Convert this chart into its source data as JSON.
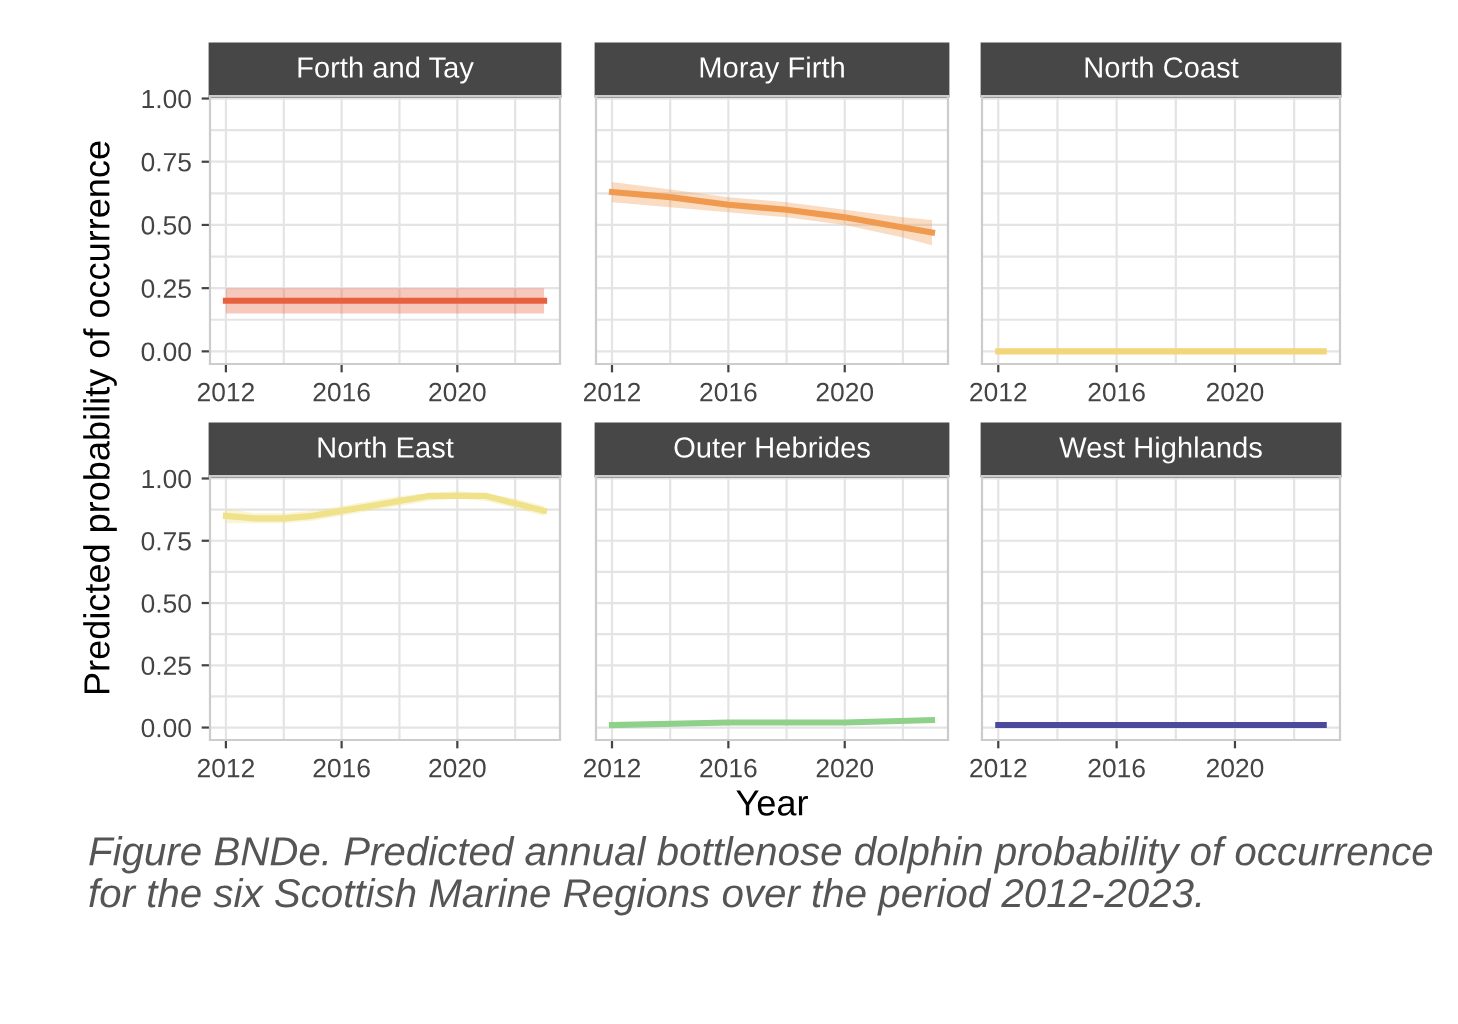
{
  "chart_data": [
    {
      "type": "line",
      "title": "Forth and Tay",
      "ylabel": "Predicted probability of occurrence",
      "x": [
        2012,
        2014,
        2016,
        2018,
        2020,
        2022,
        2023
      ],
      "series": [
        {
          "color": "#e8613f",
          "values": [
            0.2,
            0.2,
            0.2,
            0.2,
            0.2,
            0.2,
            0.2
          ],
          "lower": [
            0.15,
            0.15,
            0.15,
            0.15,
            0.15,
            0.15,
            0.15
          ],
          "upper": [
            0.25,
            0.25,
            0.25,
            0.25,
            0.25,
            0.25,
            0.25
          ]
        }
      ],
      "xlim": [
        2011.45,
        2023.55
      ],
      "ylim": [
        -0.05,
        1.01
      ],
      "xticks": [
        2012,
        {
          "value": 2014,
          "label": null
        },
        2016,
        {
          "value": 2018,
          "label": null
        },
        2020,
        {
          "value": 2022,
          "label": null
        }
      ],
      "yticks": [
        {
          "value": 0,
          "label": "0.00"
        },
        {
          "value": 0.125,
          "label": null
        },
        0.25,
        {
          "value": 0.375,
          "label": null
        },
        {
          "value": 0.5,
          "label": "0.50"
        },
        {
          "value": 0.625,
          "label": null
        },
        0.75,
        {
          "value": 0.875,
          "label": null
        },
        {
          "value": 1,
          "label": "1.00"
        }
      ],
      "grid": true
    },
    {
      "type": "line",
      "title": "Moray Firth",
      "x": [
        2012,
        2014,
        2016,
        2018,
        2020,
        2022,
        2023
      ],
      "series": [
        {
          "color": "#ef9a4f",
          "values": [
            0.63,
            0.61,
            0.58,
            0.56,
            0.53,
            0.49,
            0.47
          ],
          "lower": [
            0.59,
            0.57,
            0.55,
            0.53,
            0.5,
            0.45,
            0.42
          ],
          "upper": [
            0.67,
            0.64,
            0.61,
            0.59,
            0.56,
            0.53,
            0.52
          ]
        }
      ],
      "xlim": [
        2011.45,
        2023.55
      ],
      "ylim": [
        -0.05,
        1.01
      ],
      "xticks": [
        2012,
        {
          "value": 2014,
          "label": null
        },
        2016,
        {
          "value": 2018,
          "label": null
        },
        2020,
        {
          "value": 2022,
          "label": null
        }
      ],
      "yticks": [
        0.0,
        {
          "value": 0.125,
          "label": null
        },
        0.25,
        {
          "value": 0.375,
          "label": null
        },
        0.5,
        {
          "value": 0.625,
          "label": null
        },
        0.75,
        {
          "value": 0.875,
          "label": null
        },
        1.0
      ],
      "grid": true,
      "tick_labels": "x"
    },
    {
      "type": "line",
      "title": "North Coast",
      "x": [
        2012,
        2016,
        2020,
        2023
      ],
      "series": [
        {
          "color": "#f3d57a",
          "values": [
            0.0,
            0.0,
            0.0,
            0.0
          ]
        }
      ],
      "xlim": [
        2011.45,
        2023.55
      ],
      "ylim": [
        -0.05,
        1.01
      ],
      "xticks": [
        2012,
        {
          "value": 2014,
          "label": null
        },
        2016,
        {
          "value": 2018,
          "label": null
        },
        2020,
        {
          "value": 2022,
          "label": null
        }
      ],
      "yticks": [
        0.0,
        {
          "value": 0.125,
          "label": null
        },
        0.25,
        {
          "value": 0.375,
          "label": null
        },
        0.5,
        {
          "value": 0.625,
          "label": null
        },
        0.75,
        {
          "value": 0.875,
          "label": null
        },
        1.0
      ],
      "grid": true,
      "tick_labels": "x"
    },
    {
      "type": "line",
      "title": "North East",
      "x": [
        2012,
        2013,
        2014,
        2015,
        2016,
        2017,
        2018,
        2019,
        2020,
        2021,
        2022,
        2023
      ],
      "series": [
        {
          "color": "#efe28a",
          "values": [
            0.85,
            0.84,
            0.84,
            0.85,
            0.87,
            0.89,
            0.91,
            0.93,
            0.93,
            0.93,
            0.9,
            0.87
          ],
          "lower": [
            0.82,
            0.82,
            0.82,
            0.83,
            0.85,
            0.87,
            0.89,
            0.91,
            0.92,
            0.91,
            0.88,
            0.85
          ],
          "upper": [
            0.88,
            0.86,
            0.86,
            0.87,
            0.89,
            0.91,
            0.93,
            0.94,
            0.95,
            0.94,
            0.92,
            0.89
          ]
        }
      ],
      "xlim": [
        2011.45,
        2023.55
      ],
      "ylim": [
        -0.05,
        1.01
      ],
      "xticks": [
        2012,
        {
          "value": 2014,
          "label": null
        },
        2016,
        {
          "value": 2018,
          "label": null
        },
        2020,
        {
          "value": 2022,
          "label": null
        }
      ],
      "yticks": [
        {
          "value": 0,
          "label": "0.00"
        },
        {
          "value": 0.125,
          "label": null
        },
        0.25,
        {
          "value": 0.375,
          "label": null
        },
        {
          "value": 0.5,
          "label": "0.50"
        },
        {
          "value": 0.625,
          "label": null
        },
        0.75,
        {
          "value": 0.875,
          "label": null
        },
        {
          "value": 1,
          "label": "1.00"
        }
      ],
      "grid": true
    },
    {
      "type": "line",
      "title": "Outer Hebrides",
      "xlabel": "Year",
      "x": [
        2012,
        2016,
        2020,
        2023
      ],
      "series": [
        {
          "color": "#8fd08b",
          "values": [
            0.01,
            0.02,
            0.02,
            0.03
          ]
        }
      ],
      "xlim": [
        2011.45,
        2023.55
      ],
      "ylim": [
        -0.05,
        1.01
      ],
      "xticks": [
        2012,
        {
          "value": 2014,
          "label": null
        },
        2016,
        {
          "value": 2018,
          "label": null
        },
        2020,
        {
          "value": 2022,
          "label": null
        }
      ],
      "yticks": [
        0.0,
        {
          "value": 0.125,
          "label": null
        },
        0.25,
        {
          "value": 0.375,
          "label": null
        },
        0.5,
        {
          "value": 0.625,
          "label": null
        },
        0.75,
        {
          "value": 0.875,
          "label": null
        },
        1.0
      ],
      "grid": true,
      "tick_labels": "x"
    },
    {
      "type": "line",
      "title": "West Highlands",
      "x": [
        2012,
        2016,
        2020,
        2023
      ],
      "series": [
        {
          "color": "#4d4a9c",
          "values": [
            0.01,
            0.01,
            0.01,
            0.01
          ]
        }
      ],
      "xlim": [
        2011.45,
        2023.55
      ],
      "ylim": [
        -0.05,
        1.01
      ],
      "xticks": [
        2012,
        {
          "value": 2014,
          "label": null
        },
        2016,
        {
          "value": 2018,
          "label": null
        },
        2020,
        {
          "value": 2022,
          "label": null
        }
      ],
      "yticks": [
        0.0,
        {
          "value": 0.125,
          "label": null
        },
        0.25,
        {
          "value": 0.375,
          "label": null
        },
        0.5,
        {
          "value": 0.625,
          "label": null
        },
        0.75,
        {
          "value": 0.875,
          "label": null
        },
        1.0
      ],
      "grid": true,
      "tick_labels": "x",
      "annotations": [
        "Figure BNDe. Predicted annual bottlenose dolphin probability of occurrence for the six Scottish Marine Regions over the period 2012-2023."
      ]
    }
  ]
}
